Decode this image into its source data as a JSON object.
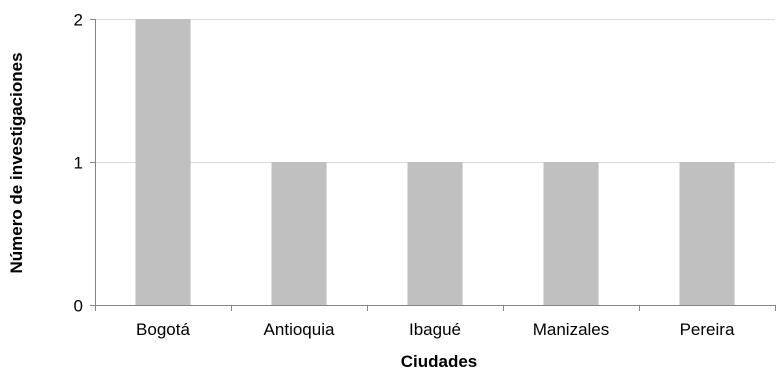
{
  "chart_data": {
    "type": "bar",
    "title": "",
    "xlabel": "Ciudades",
    "ylabel": "Número de investigaciones",
    "categories": [
      "Bogotá",
      "Antioquia",
      "Ibagué",
      "Manizales",
      "Pereira"
    ],
    "values": [
      2,
      1,
      1,
      1,
      1
    ],
    "ylim": [
      0,
      2
    ],
    "yticks": [
      0,
      1,
      2
    ],
    "ytick_labels": [
      "0",
      "1",
      "2"
    ],
    "grid": "horizontal",
    "legend": "none",
    "colors": {
      "bar": "#c0c0c0",
      "gridline": "#d9d9d9",
      "axis": "#868686"
    }
  }
}
